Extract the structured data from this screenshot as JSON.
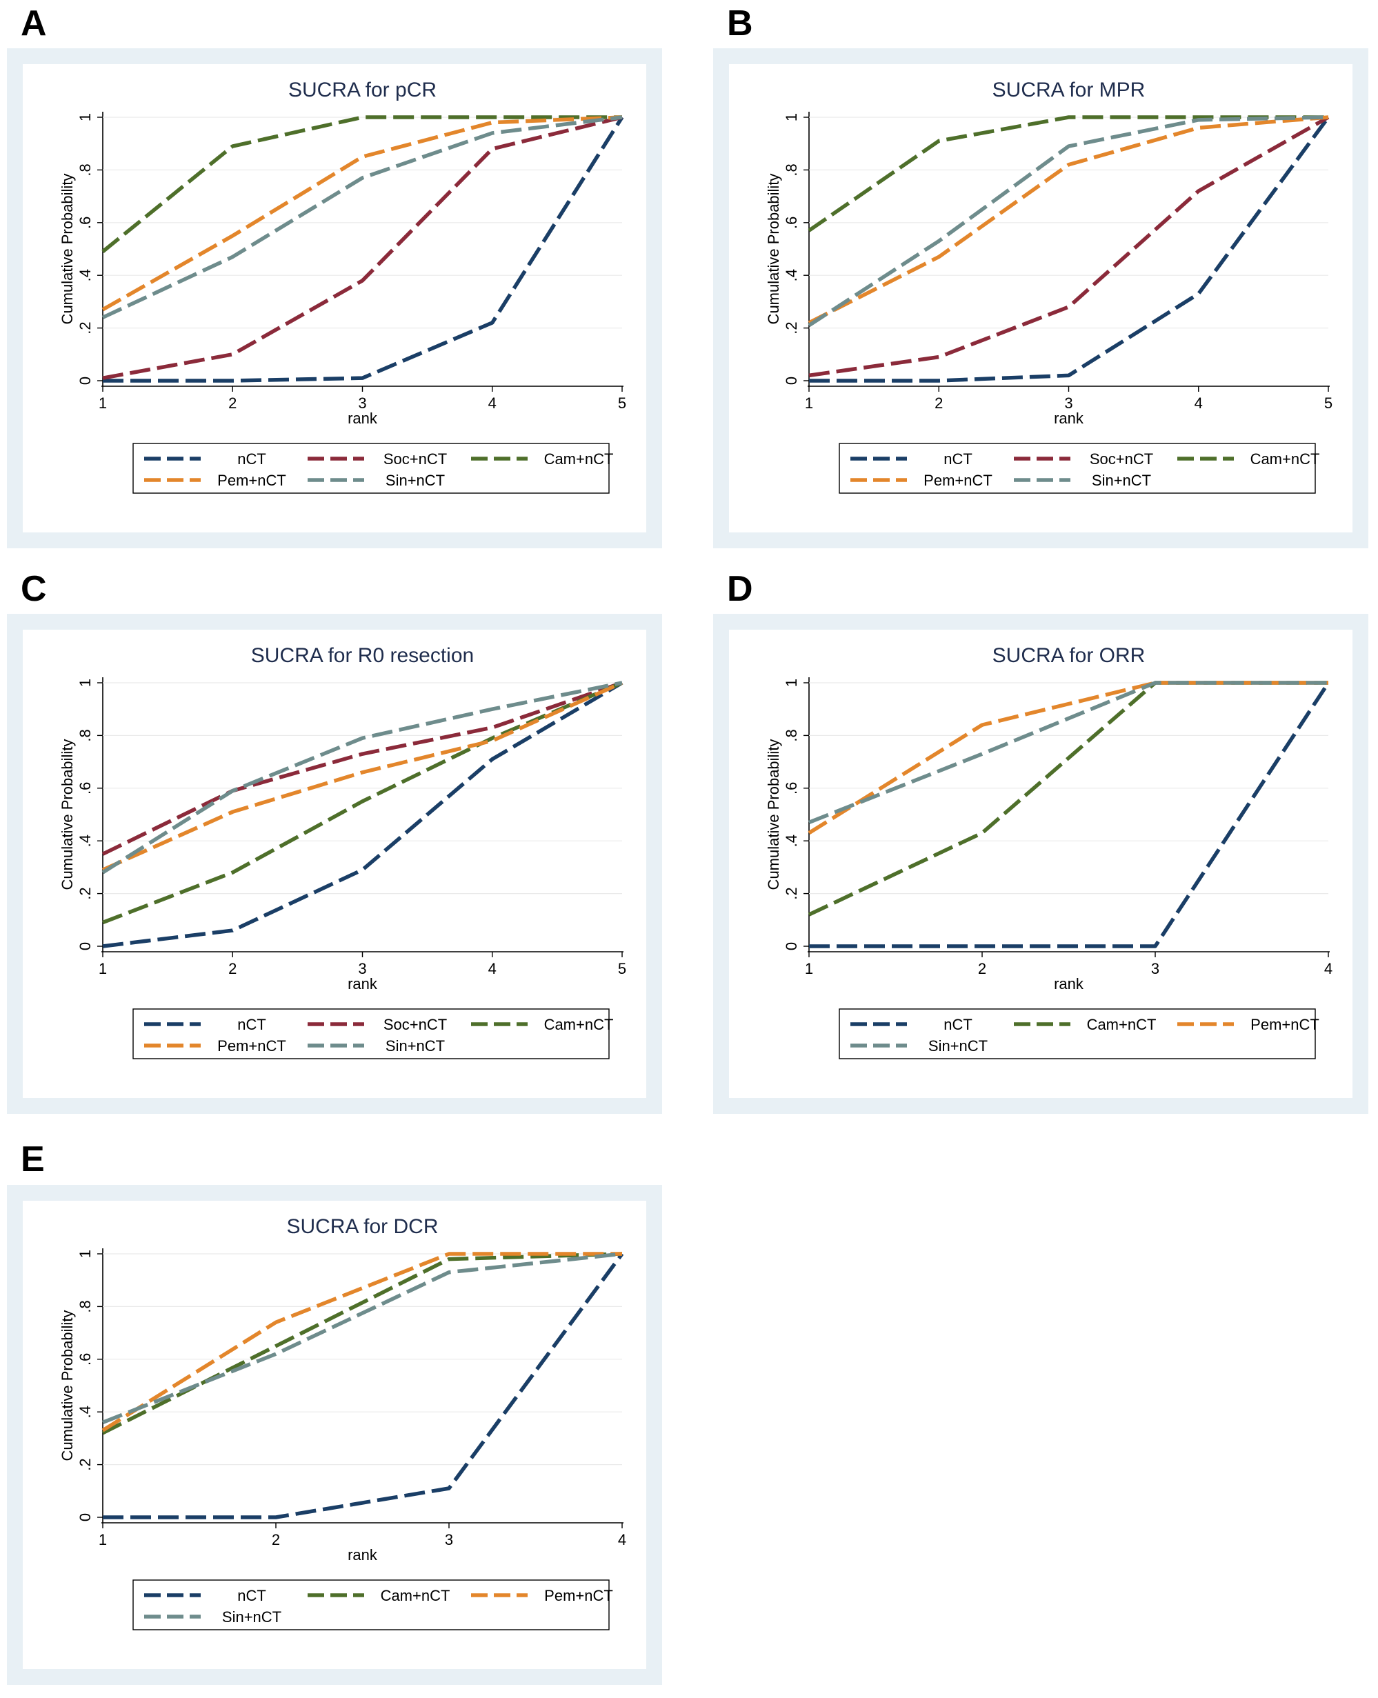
{
  "colors": {
    "nCT": "#1a3e66",
    "Soc+nCT": "#8b2a3a",
    "Cam+nCT": "#4e6f2a",
    "Pem+nCT": "#e3862b",
    "Sin+nCT": "#6e8c8c",
    "panel_bg": "#e8f0f5",
    "title": "#1f2d4d"
  },
  "panels": [
    {
      "letter": "A"
    },
    {
      "letter": "B"
    },
    {
      "letter": "C"
    },
    {
      "letter": "D"
    },
    {
      "letter": "E"
    }
  ],
  "chart_data": [
    {
      "type": "line",
      "title": "SUCRA for pCR",
      "xlabel": "rank",
      "ylabel": "Cumulative Probability",
      "x": [
        1,
        2,
        3,
        4,
        5
      ],
      "ylim": [
        0,
        1
      ],
      "yticks": [
        "0",
        ".2",
        ".4",
        ".6",
        ".8",
        "1"
      ],
      "legend": [
        "nCT",
        "Soc+nCT",
        "Cam+nCT",
        "Pem+nCT",
        "Sin+nCT"
      ],
      "series": [
        {
          "name": "nCT",
          "values": [
            0.0,
            0.0,
            0.01,
            0.22,
            1.0
          ]
        },
        {
          "name": "Soc+nCT",
          "values": [
            0.01,
            0.1,
            0.38,
            0.88,
            1.0
          ]
        },
        {
          "name": "Cam+nCT",
          "values": [
            0.49,
            0.89,
            1.0,
            1.0,
            1.0
          ]
        },
        {
          "name": "Pem+nCT",
          "values": [
            0.27,
            0.55,
            0.85,
            0.98,
            1.0
          ]
        },
        {
          "name": "Sin+nCT",
          "values": [
            0.24,
            0.47,
            0.77,
            0.94,
            1.0
          ]
        }
      ]
    },
    {
      "type": "line",
      "title": "SUCRA for MPR",
      "xlabel": "rank",
      "ylabel": "Cumulative Probability",
      "x": [
        1,
        2,
        3,
        4,
        5
      ],
      "ylim": [
        0,
        1
      ],
      "yticks": [
        "0",
        ".2",
        ".4",
        ".6",
        ".8",
        "1"
      ],
      "legend": [
        "nCT",
        "Soc+nCT",
        "Cam+nCT",
        "Pem+nCT",
        "Sin+nCT"
      ],
      "series": [
        {
          "name": "nCT",
          "values": [
            0.0,
            0.0,
            0.02,
            0.33,
            1.0
          ]
        },
        {
          "name": "Soc+nCT",
          "values": [
            0.02,
            0.09,
            0.28,
            0.72,
            1.0
          ]
        },
        {
          "name": "Cam+nCT",
          "values": [
            0.57,
            0.91,
            1.0,
            1.0,
            1.0
          ]
        },
        {
          "name": "Pem+nCT",
          "values": [
            0.22,
            0.47,
            0.82,
            0.96,
            1.0
          ]
        },
        {
          "name": "Sin+nCT",
          "values": [
            0.21,
            0.53,
            0.89,
            0.99,
            1.0
          ]
        }
      ]
    },
    {
      "type": "line",
      "title": "SUCRA for R0 resection",
      "xlabel": "rank",
      "ylabel": "Cumulative Probability",
      "x": [
        1,
        2,
        3,
        4,
        5
      ],
      "ylim": [
        0,
        1
      ],
      "yticks": [
        "0",
        ".2",
        ".4",
        ".6",
        ".8",
        "1"
      ],
      "legend": [
        "nCT",
        "Soc+nCT",
        "Cam+nCT",
        "Pem+nCT",
        "Sin+nCT"
      ],
      "series": [
        {
          "name": "nCT",
          "values": [
            0.0,
            0.06,
            0.29,
            0.71,
            1.0
          ]
        },
        {
          "name": "Soc+nCT",
          "values": [
            0.35,
            0.59,
            0.73,
            0.83,
            1.0
          ]
        },
        {
          "name": "Cam+nCT",
          "values": [
            0.09,
            0.28,
            0.55,
            0.79,
            1.0
          ]
        },
        {
          "name": "Pem+nCT",
          "values": [
            0.29,
            0.51,
            0.66,
            0.78,
            1.0
          ]
        },
        {
          "name": "Sin+nCT",
          "values": [
            0.28,
            0.59,
            0.79,
            0.9,
            1.0
          ]
        }
      ]
    },
    {
      "type": "line",
      "title": "SUCRA for ORR",
      "xlabel": "rank",
      "ylabel": "Cumulative Probability",
      "x": [
        1,
        2,
        3,
        4
      ],
      "ylim": [
        0,
        1
      ],
      "yticks": [
        "0",
        ".2",
        ".4",
        ".6",
        ".8",
        "1"
      ],
      "legend": [
        "nCT",
        "Cam+nCT",
        "Pem+nCT",
        "Sin+nCT"
      ],
      "series": [
        {
          "name": "nCT",
          "values": [
            0.0,
            0.0,
            0.0,
            1.0
          ]
        },
        {
          "name": "Cam+nCT",
          "values": [
            0.12,
            0.43,
            1.0,
            1.0
          ]
        },
        {
          "name": "Pem+nCT",
          "values": [
            0.43,
            0.84,
            1.0,
            1.0
          ]
        },
        {
          "name": "Sin+nCT",
          "values": [
            0.47,
            0.73,
            1.0,
            1.0
          ]
        }
      ]
    },
    {
      "type": "line",
      "title": "SUCRA for DCR",
      "xlabel": "rank",
      "ylabel": "Cumulative Probability",
      "x": [
        1,
        2,
        3,
        4
      ],
      "ylim": [
        0,
        1
      ],
      "yticks": [
        "0",
        ".2",
        ".4",
        ".6",
        ".8",
        "1"
      ],
      "legend": [
        "nCT",
        "Cam+nCT",
        "Pem+nCT",
        "Sin+nCT"
      ],
      "series": [
        {
          "name": "nCT",
          "values": [
            0.0,
            0.0,
            0.11,
            1.0
          ]
        },
        {
          "name": "Cam+nCT",
          "values": [
            0.32,
            0.65,
            0.98,
            1.0
          ]
        },
        {
          "name": "Pem+nCT",
          "values": [
            0.33,
            0.74,
            1.0,
            1.0
          ]
        },
        {
          "name": "Sin+nCT",
          "values": [
            0.36,
            0.62,
            0.93,
            1.0
          ]
        }
      ]
    }
  ]
}
